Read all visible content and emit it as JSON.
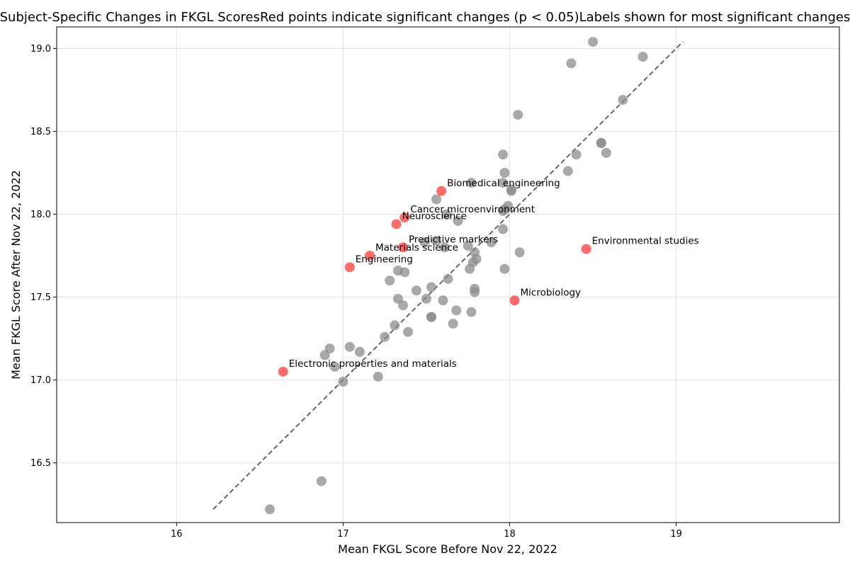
{
  "chart_data": {
    "type": "scatter",
    "title": "Subject-Specific Changes in FKGL ScoresRed points indicate significant changes (p < 0.05)Labels shown for most significant changes",
    "xlabel": "Mean FKGL Score Before Nov 22, 2022",
    "ylabel": "Mean FKGL Score After Nov 22, 2022",
    "xlim": [
      15.28,
      19.98
    ],
    "ylim": [
      16.14,
      19.13
    ],
    "xticks": [
      16,
      17,
      18,
      19
    ],
    "yticks": [
      16.5,
      17.0,
      17.5,
      18.0,
      18.5,
      19.0
    ],
    "grid": true,
    "reference_line": {
      "style": "dashed",
      "color": "#666666",
      "from": [
        16.22,
        16.22
      ],
      "to": [
        19.04,
        19.04
      ]
    },
    "colors": {
      "nonsignificant": "#8c8c8c",
      "significant": "#ff3b3b"
    },
    "points": [
      {
        "x": 18.5,
        "y": 19.04
      },
      {
        "x": 18.37,
        "y": 18.91
      },
      {
        "x": 18.8,
        "y": 18.95
      },
      {
        "x": 18.68,
        "y": 18.69
      },
      {
        "x": 18.05,
        "y": 18.6
      },
      {
        "x": 18.55,
        "y": 18.43
      },
      {
        "x": 18.55,
        "y": 18.43
      },
      {
        "x": 18.58,
        "y": 18.37
      },
      {
        "x": 18.4,
        "y": 18.36
      },
      {
        "x": 18.35,
        "y": 18.26
      },
      {
        "x": 17.96,
        "y": 18.36
      },
      {
        "x": 17.97,
        "y": 18.25
      },
      {
        "x": 17.96,
        "y": 18.19
      },
      {
        "x": 18.01,
        "y": 18.15
      },
      {
        "x": 18.01,
        "y": 18.14
      },
      {
        "x": 17.77,
        "y": 18.19
      },
      {
        "x": 17.56,
        "y": 18.09
      },
      {
        "x": 17.99,
        "y": 18.05
      },
      {
        "x": 17.97,
        "y": 18.03
      },
      {
        "x": 17.96,
        "y": 18.02
      },
      {
        "x": 17.62,
        "y": 18.0
      },
      {
        "x": 17.69,
        "y": 17.96
      },
      {
        "x": 17.96,
        "y": 17.91
      },
      {
        "x": 17.49,
        "y": 17.83
      },
      {
        "x": 17.56,
        "y": 17.84
      },
      {
        "x": 17.61,
        "y": 17.8
      },
      {
        "x": 17.75,
        "y": 17.81
      },
      {
        "x": 17.89,
        "y": 17.83
      },
      {
        "x": 18.06,
        "y": 17.77
      },
      {
        "x": 17.79,
        "y": 17.77
      },
      {
        "x": 17.8,
        "y": 17.73
      },
      {
        "x": 17.78,
        "y": 17.71
      },
      {
        "x": 17.76,
        "y": 17.67
      },
      {
        "x": 17.97,
        "y": 17.67
      },
      {
        "x": 17.33,
        "y": 17.66
      },
      {
        "x": 17.37,
        "y": 17.65
      },
      {
        "x": 17.63,
        "y": 17.61
      },
      {
        "x": 17.28,
        "y": 17.6
      },
      {
        "x": 17.53,
        "y": 17.56
      },
      {
        "x": 17.44,
        "y": 17.54
      },
      {
        "x": 17.79,
        "y": 17.55
      },
      {
        "x": 17.79,
        "y": 17.53
      },
      {
        "x": 17.33,
        "y": 17.49
      },
      {
        "x": 17.5,
        "y": 17.49
      },
      {
        "x": 17.6,
        "y": 17.48
      },
      {
        "x": 17.36,
        "y": 17.45
      },
      {
        "x": 17.68,
        "y": 17.42
      },
      {
        "x": 17.77,
        "y": 17.41
      },
      {
        "x": 17.53,
        "y": 17.38
      },
      {
        "x": 17.53,
        "y": 17.38
      },
      {
        "x": 17.31,
        "y": 17.33
      },
      {
        "x": 17.66,
        "y": 17.34
      },
      {
        "x": 17.39,
        "y": 17.29
      },
      {
        "x": 17.25,
        "y": 17.26
      },
      {
        "x": 16.92,
        "y": 17.19
      },
      {
        "x": 17.04,
        "y": 17.2
      },
      {
        "x": 17.1,
        "y": 17.17
      },
      {
        "x": 16.89,
        "y": 17.15
      },
      {
        "x": 16.95,
        "y": 17.08
      },
      {
        "x": 17.0,
        "y": 16.99
      },
      {
        "x": 17.21,
        "y": 17.02
      },
      {
        "x": 16.87,
        "y": 16.39
      },
      {
        "x": 16.56,
        "y": 16.22
      }
    ],
    "significant_points": [
      {
        "x": 17.59,
        "y": 18.14,
        "label": "Biomedical engineering"
      },
      {
        "x": 17.37,
        "y": 17.98,
        "label": "Cancer microenvironment"
      },
      {
        "x": 17.32,
        "y": 17.94,
        "label": "Neuroscience"
      },
      {
        "x": 17.36,
        "y": 17.8,
        "label": "Predictive markers"
      },
      {
        "x": 17.16,
        "y": 17.75,
        "label": "Materials science"
      },
      {
        "x": 17.04,
        "y": 17.68,
        "label": "Engineering"
      },
      {
        "x": 18.46,
        "y": 17.79,
        "label": "Environmental studies"
      },
      {
        "x": 18.03,
        "y": 17.48,
        "label": "Microbiology"
      },
      {
        "x": 16.64,
        "y": 17.05,
        "label": "Electronic properties and materials"
      }
    ]
  }
}
